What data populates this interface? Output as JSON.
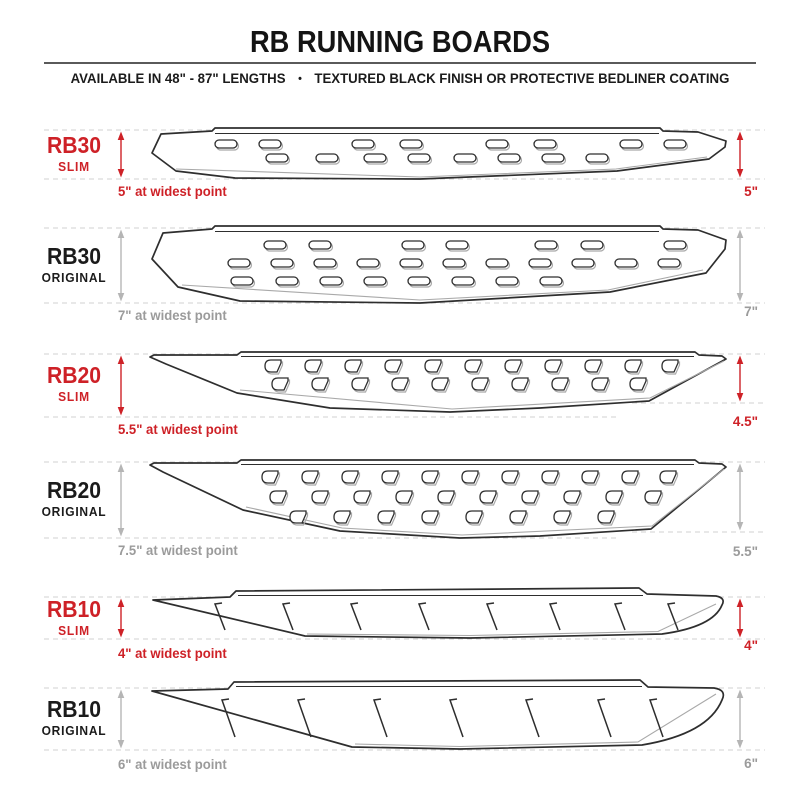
{
  "header": {
    "title": "RB RUNNING BOARDS",
    "subtitle_left": "AVAILABLE IN 48\" - 87\" LENGTHS",
    "subtitle_separator": "•",
    "subtitle_right": "TEXTURED BLACK FINISH OR PROTECTIVE BEDLINER COATING"
  },
  "colors": {
    "accent_red": "#ce2127",
    "gray_text": "#9b9b9b",
    "black_text": "#1b1b1b",
    "outline_ink": "#2e2e2e",
    "shadow_line": "#a9a9a9",
    "dashed_guide": "#d9d9d9",
    "gray_arrow": "#b5b5b5"
  },
  "boards": [
    {
      "model": "RB30",
      "variant": "SLIM",
      "theme": "red",
      "slot_type": "oval-slot",
      "left_width_label": "5\" at widest point",
      "right_width_label": "5\""
    },
    {
      "model": "RB30",
      "variant": "ORIGINAL",
      "theme": "gray",
      "slot_type": "oval-slot",
      "left_width_label": "7\" at widest point",
      "right_width_label": "7\""
    },
    {
      "model": "RB20",
      "variant": "SLIM",
      "theme": "red",
      "slot_type": "d-slot",
      "left_width_label": "5.5\" at widest point",
      "right_width_label": "4.5\""
    },
    {
      "model": "RB20",
      "variant": "ORIGINAL",
      "theme": "gray",
      "slot_type": "d-slot",
      "left_width_label": "7.5\" at widest point",
      "right_width_label": "5.5\""
    },
    {
      "model": "RB10",
      "variant": "SLIM",
      "theme": "red",
      "slot_type": "slash-mark",
      "left_width_label": "4\" at widest point",
      "right_width_label": "4\""
    },
    {
      "model": "RB10",
      "variant": "ORIGINAL",
      "theme": "gray",
      "slot_type": "slash-mark",
      "left_width_label": "6\" at widest point",
      "right_width_label": "6\""
    }
  ]
}
